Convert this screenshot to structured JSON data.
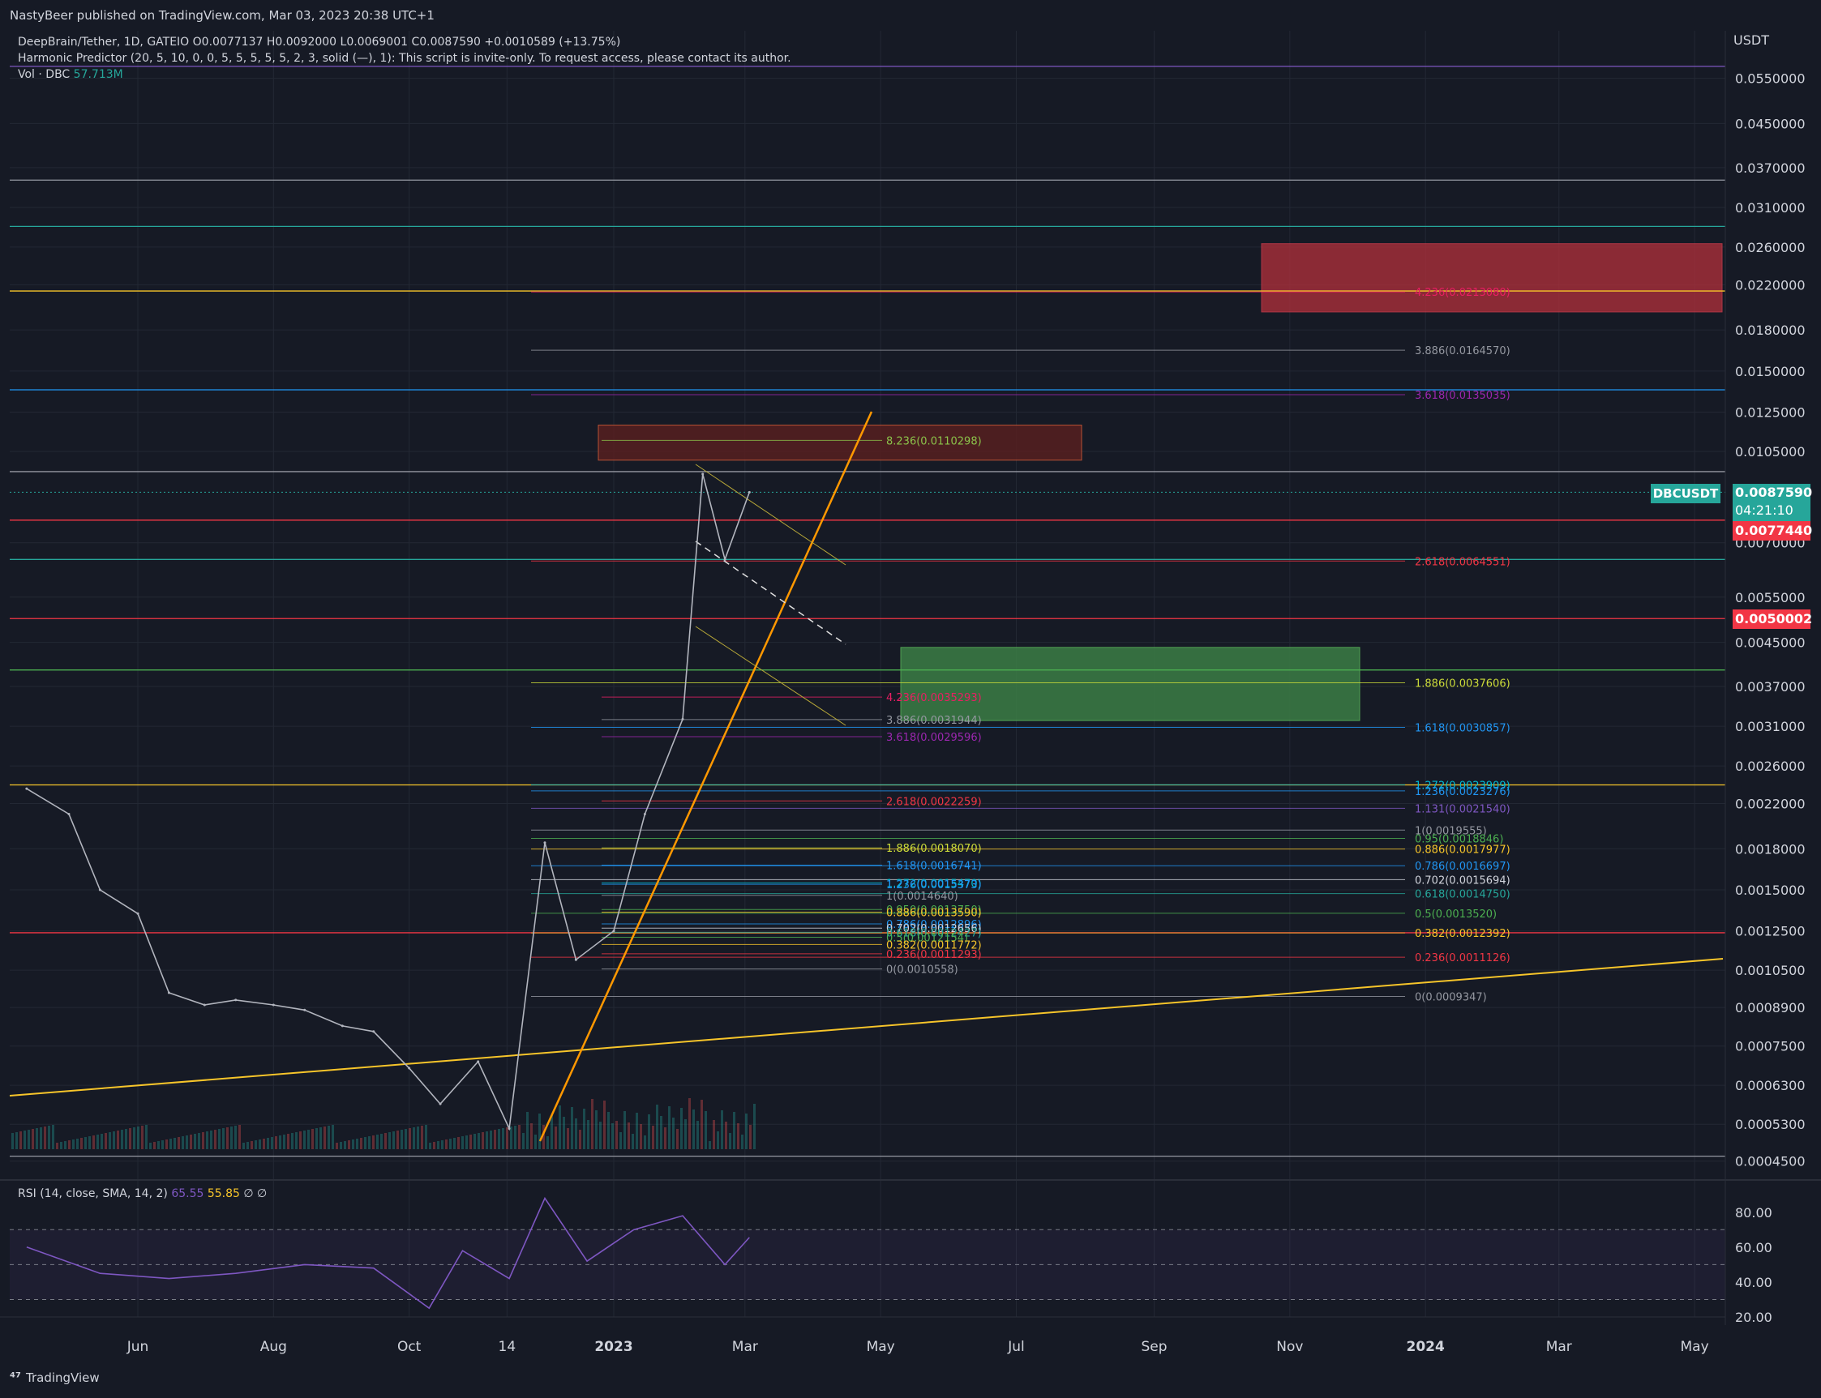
{
  "header": {
    "publisher": "NastyBeer published on TradingView.com, Mar 03, 2023 20:38 UTC+1"
  },
  "legend": {
    "symbol_line": "DeepBrain/Tether, 1D, GATEIO",
    "ohlc": "O0.0077137  H0.0092000  L0.0069001  C0.0087590  +0.0010589 (+13.75%)",
    "indicator": "Harmonic Predictor (20, 5, 10, 0, 0, 5, 5, 5, 5, 5, 2, 3, solid (—), 1): This script is invite-only. To request access, please contact its author.",
    "vol_label": "Vol · DBC",
    "vol_value": "57.713M"
  },
  "price_axis": {
    "unit": "USDT",
    "ticks": [
      "0.0550000",
      "0.0450000",
      "0.0370000",
      "0.0310000",
      "0.0260000",
      "0.0220000",
      "0.0180000",
      "0.0150000",
      "0.0125000",
      "0.0105000",
      "0.0070000",
      "0.0055000",
      "0.0045000",
      "0.0037000",
      "0.0031000",
      "0.0026000",
      "0.0022000",
      "0.0018000",
      "0.0015000",
      "0.0012500",
      "0.0010500",
      "0.0008900",
      "0.0007500",
      "0.0006300",
      "0.0005300",
      "0.0004500"
    ],
    "current_price": "0.0087590",
    "countdown": "04:21:10",
    "symbol_badge": "DBCUSDT",
    "red_level_1": "0.0077440",
    "red_level_2": "0.0050002"
  },
  "time_axis": {
    "ticks": [
      "Jun",
      "Aug",
      "Oct",
      "14",
      "2023",
      "Mar",
      "May",
      "Jul",
      "Sep",
      "Nov",
      "2024",
      "Mar",
      "May"
    ]
  },
  "rsi": {
    "label": "RSI (14, close, SMA, 14, 2)",
    "value": "65.55",
    "sma_value": "55.85",
    "extra": "∅  ∅",
    "ticks": [
      "80.00",
      "60.00",
      "40.00",
      "20.00"
    ]
  },
  "footer": {
    "brand": "TradingView"
  },
  "colors": {
    "background": "#161a25",
    "up": "#26a69a",
    "down": "#ef5350",
    "rsi": "#7e57c2",
    "rsi_sma": "#f7c52a",
    "trend_orange": "#ff9800",
    "trend_yellow": "#f7c52a"
  },
  "chart_data": {
    "type": "line",
    "title": "DeepBrain/Tether, 1D, GATEIO",
    "ylabel": "USDT",
    "y_scale": "log",
    "price_series": {
      "name": "DBCUSDT",
      "x": [
        "2022-04-12",
        "2022-05-01",
        "2022-05-15",
        "2022-06-01",
        "2022-06-15",
        "2022-07-01",
        "2022-07-15",
        "2022-08-01",
        "2022-08-15",
        "2022-09-01",
        "2022-09-15",
        "2022-10-01",
        "2022-10-15",
        "2022-11-01",
        "2022-11-15",
        "2022-12-01",
        "2022-12-15",
        "2023-01-01",
        "2023-01-15",
        "2023-02-01",
        "2023-02-10",
        "2023-02-20",
        "2023-03-03"
      ],
      "y": [
        0.00235,
        0.0021,
        0.0015,
        0.00135,
        0.00095,
        0.0009,
        0.00092,
        0.0009,
        0.00088,
        0.00082,
        0.0008,
        0.00068,
        0.00058,
        0.0007,
        0.00052,
        0.00185,
        0.0011,
        0.00125,
        0.0021,
        0.0032,
        0.0095,
        0.0065,
        0.008759
      ]
    },
    "rsi_series": {
      "x": [
        "2022-04-12",
        "2022-05-15",
        "2022-06-15",
        "2022-07-15",
        "2022-08-15",
        "2022-09-15",
        "2022-10-10",
        "2022-10-25",
        "2022-11-15",
        "2022-12-01",
        "2022-12-20",
        "2023-01-10",
        "2023-02-01",
        "2023-02-20",
        "2023-03-03"
      ],
      "y": [
        60,
        45,
        42,
        45,
        50,
        48,
        25,
        58,
        42,
        88,
        52,
        70,
        78,
        50,
        65.55
      ]
    },
    "fib_labels_right": [
      "4.236(0.0213080)",
      "3.886(0.0164570)",
      "3.618(0.0135035)",
      "2.618(0.0064551)",
      "1.886(0.0037606)",
      "1.618(0.0030857)",
      "1.272(0.0023909)",
      "1.236(0.0023276)",
      "1.131(0.0021540)",
      "1(0.0019555)",
      "0.95(0.0018846)",
      "0.886(0.0017977)",
      "0.786(0.0016697)",
      "0.702(0.0015694)",
      "0.618(0.0014750)",
      "0.5(0.0013520)",
      "0.382(0.0012392)",
      "0.236(0.0011126)",
      "0(0.0009347)"
    ],
    "fib_labels_mid": [
      "8.236(0.0110298)",
      "4.236(0.0035293)",
      "3.886(0.0031944)",
      "3.618(0.0029596)",
      "2.618(0.0022259)",
      "1.886(0.0018070)",
      "1.618(0.0016741)",
      "1.272(0.0015470)",
      "1.236(0.0015373)",
      "1(0.0014640)",
      "0.950(0.0013750)",
      "0.886(0.0013590)",
      "0.786(0.0012896)",
      "0.702(0.0012656)",
      "0.618(0.0012427)",
      "0.5(0.0012154)",
      "0.382(0.0011772)",
      "0.236(0.0011293)",
      "0(0.0010558)"
    ]
  }
}
